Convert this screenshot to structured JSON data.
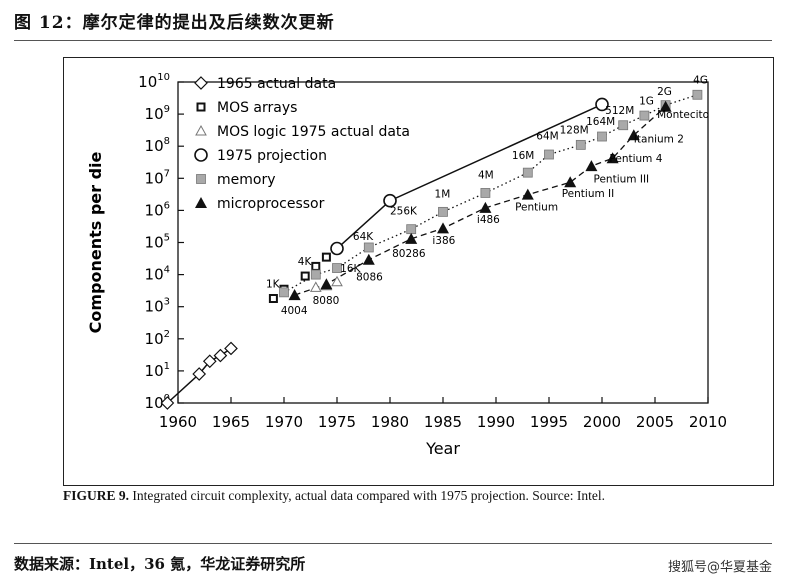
{
  "header": {
    "title": "图 12：摩尔定律的提出及后续数次更新"
  },
  "caption": {
    "label": "FIGURE 9.",
    "text": " Integrated circuit complexity, actual data compared with 1975 projection. Source: Intel."
  },
  "footer": {
    "source": "数据来源：Intel，36 氪，华龙证券研究所",
    "watermark": "搜狐号@华夏基金"
  },
  "chart_data": {
    "type": "scatter",
    "xlabel": "Year",
    "ylabel": "Components per die",
    "xlim": [
      1960,
      2010
    ],
    "ylim_log10": [
      0,
      10
    ],
    "x_ticks": [
      1960,
      1965,
      1970,
      1975,
      1980,
      1985,
      1990,
      1995,
      2000,
      2005,
      2010
    ],
    "y_tick_exponents": [
      0,
      1,
      2,
      3,
      4,
      5,
      6,
      7,
      8,
      9,
      10
    ],
    "y_scale": "log",
    "legend_position": "top-left",
    "series": [
      {
        "name": "1965 actual data",
        "marker": "diamond",
        "connect": "solid",
        "points": [
          [
            1959,
            1
          ],
          [
            1962,
            8
          ],
          [
            1963,
            20
          ],
          [
            1964,
            30
          ],
          [
            1965,
            50
          ]
        ]
      },
      {
        "name": "MOS arrays",
        "marker": "square-open",
        "points": [
          [
            1969,
            1800
          ],
          [
            1970,
            3500
          ],
          [
            1972,
            9000
          ],
          [
            1973,
            18000
          ],
          [
            1974,
            35000
          ]
        ]
      },
      {
        "name": "MOS logic 1975 actual data",
        "marker": "triangle-open",
        "points": [
          [
            1971,
            2300
          ],
          [
            1973,
            4000
          ],
          [
            1974,
            4500
          ],
          [
            1975,
            6000
          ]
        ]
      },
      {
        "name": "1975 projection",
        "marker": "circle-open",
        "connect": "solid",
        "points": [
          [
            1975,
            65000
          ],
          [
            1980,
            2000000
          ],
          [
            2000,
            2000000000
          ]
        ]
      },
      {
        "name": "memory",
        "marker": "square-gray",
        "connect": "dotted",
        "points": [
          [
            1970,
            2800
          ],
          [
            1973,
            10000
          ],
          [
            1975,
            16000
          ],
          [
            1978,
            70000
          ],
          [
            1982,
            260000
          ],
          [
            1985,
            900000
          ],
          [
            1989,
            3500000
          ],
          [
            1993,
            15000000
          ],
          [
            1995,
            55000000
          ],
          [
            1998,
            110000000
          ],
          [
            2000,
            200000000
          ],
          [
            2002,
            450000000
          ],
          [
            2004,
            900000000
          ],
          [
            2006,
            1900000000
          ],
          [
            2009,
            4000000000
          ]
        ]
      },
      {
        "name": "microprocessor",
        "marker": "triangle-filled",
        "connect": "dashed",
        "points": [
          [
            1971,
            2300
          ],
          [
            1974,
            5000
          ],
          [
            1978,
            29000
          ],
          [
            1982,
            130000
          ],
          [
            1985,
            275000
          ],
          [
            1989,
            1200000
          ],
          [
            1993,
            3100000
          ],
          [
            1997,
            7500000
          ],
          [
            1999,
            24000000
          ],
          [
            2001,
            42000000
          ],
          [
            2003,
            220000000
          ],
          [
            2006,
            1700000000
          ]
        ]
      }
    ],
    "annotations": [
      {
        "text": "1K",
        "x": 1968.3,
        "y": 4000,
        "anchor": "start"
      },
      {
        "text": "4K",
        "x": 1971.3,
        "y": 20000,
        "anchor": "start"
      },
      {
        "text": "16K",
        "x": 1975.3,
        "y": 12000,
        "anchor": "start"
      },
      {
        "text": "64K",
        "x": 1976.5,
        "y": 120000,
        "anchor": "start"
      },
      {
        "text": "256K",
        "x": 1980.0,
        "y": 750000,
        "anchor": "start"
      },
      {
        "text": "1M",
        "x": 1984.2,
        "y": 2500000,
        "anchor": "start"
      },
      {
        "text": "4M",
        "x": 1988.3,
        "y": 10000000,
        "anchor": "start"
      },
      {
        "text": "16M",
        "x": 1991.5,
        "y": 40000000,
        "anchor": "start"
      },
      {
        "text": "64M",
        "x": 1993.8,
        "y": 160000000,
        "anchor": "start"
      },
      {
        "text": "128M",
        "x": 1996.0,
        "y": 250000000,
        "anchor": "start"
      },
      {
        "text": "164M",
        "x": 1998.5,
        "y": 450000000,
        "anchor": "start"
      },
      {
        "text": "512M",
        "x": 2000.3,
        "y": 1000000000,
        "anchor": "start"
      },
      {
        "text": "1G",
        "x": 2003.5,
        "y": 2000000000,
        "anchor": "start"
      },
      {
        "text": "2G",
        "x": 2005.2,
        "y": 4000000000,
        "anchor": "start"
      },
      {
        "text": "4G",
        "x": 2008.6,
        "y": 9000000000,
        "anchor": "start"
      },
      {
        "text": "4004",
        "x": 1969.7,
        "y": 600,
        "anchor": "start"
      },
      {
        "text": "8080",
        "x": 1972.7,
        "y": 1200,
        "anchor": "start"
      },
      {
        "text": "8086",
        "x": 1976.8,
        "y": 6500,
        "anchor": "start"
      },
      {
        "text": "80286",
        "x": 1980.2,
        "y": 35000,
        "anchor": "start"
      },
      {
        "text": "i386",
        "x": 1984.0,
        "y": 90000,
        "anchor": "start"
      },
      {
        "text": "i486",
        "x": 1988.2,
        "y": 400000,
        "anchor": "start"
      },
      {
        "text": "Pentium",
        "x": 1991.8,
        "y": 1000000,
        "anchor": "start"
      },
      {
        "text": "Pentium II",
        "x": 1996.2,
        "y": 2600000,
        "anchor": "start"
      },
      {
        "text": "Pentium III",
        "x": 1999.2,
        "y": 7500000,
        "anchor": "start"
      },
      {
        "text": "Pentium 4",
        "x": 2000.7,
        "y": 32000000,
        "anchor": "start"
      },
      {
        "text": "Itanium 2",
        "x": 2003.0,
        "y": 130000000,
        "anchor": "start"
      },
      {
        "text": "Montecito",
        "x": 2005.2,
        "y": 750000000,
        "anchor": "start"
      }
    ]
  }
}
